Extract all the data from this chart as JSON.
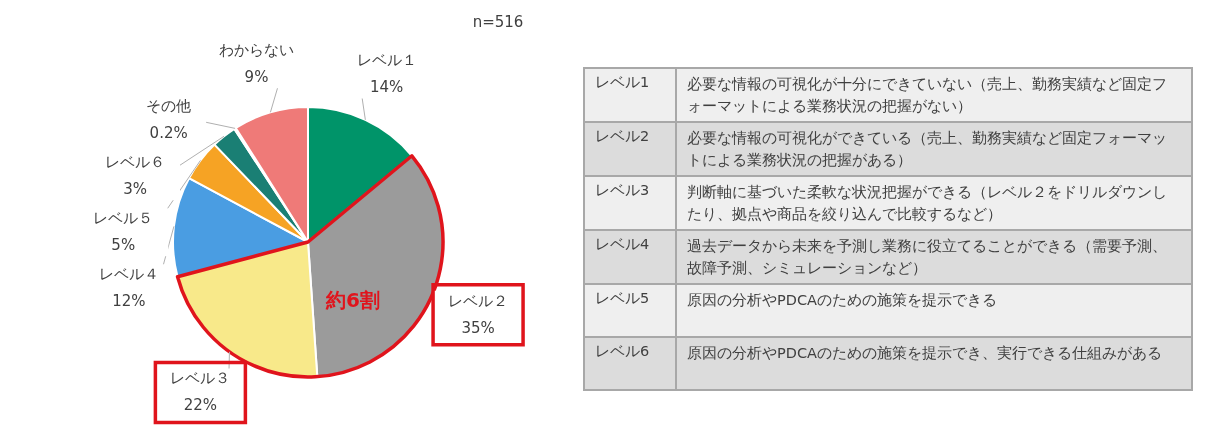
{
  "chart_data": [
    {
      "type": "pie",
      "annotations": [
        "n=516",
        "約6割"
      ],
      "categories": [
        "レベル１",
        "レベル２",
        "レベル３",
        "レベル４",
        "レベル５",
        "レベル６",
        "その他",
        "わからない"
      ],
      "values": [
        14,
        35,
        22,
        12,
        5,
        3,
        0.2,
        9
      ],
      "value_labels": [
        "14%",
        "35%",
        "22%",
        "12%",
        "5%",
        "3%",
        "0.2%",
        "9%"
      ],
      "colors": [
        "#009469",
        "#9b9b9b",
        "#f8e98a",
        "#4a9de2",
        "#f6a324",
        "#1a7f74",
        "#7f7f7f",
        "#ef7a78"
      ]
    },
    {
      "type": "other",
      "categories": [
        "レベル1",
        "レベル2",
        "レベル3",
        "レベル4",
        "レベル5",
        "レベル6"
      ],
      "annotations": [
        "必要な情報の可視化が十分にできていない（売上、勤務実績など固定フォーマットによる業務状況の把握がない）",
        "必要な情報の可視化ができている（売上、勤務実績など固定フォーマットによる業務状況の把握がある）",
        "判断軸に基づいた柔軟な状況把握ができる（レベル２をドリルダウンしたり、拠点や商品を絞り込んで比較するなど）",
        "過去データから未来を予測し業務に役立てることができる（需要予測、故障予測、シミュレーションなど）",
        "原因の分析やPDCAのための施策を提示できる",
        "原因の分析やPDCAのための施策を提示でき、実行できる仕組みがある"
      ]
    }
  ]
}
